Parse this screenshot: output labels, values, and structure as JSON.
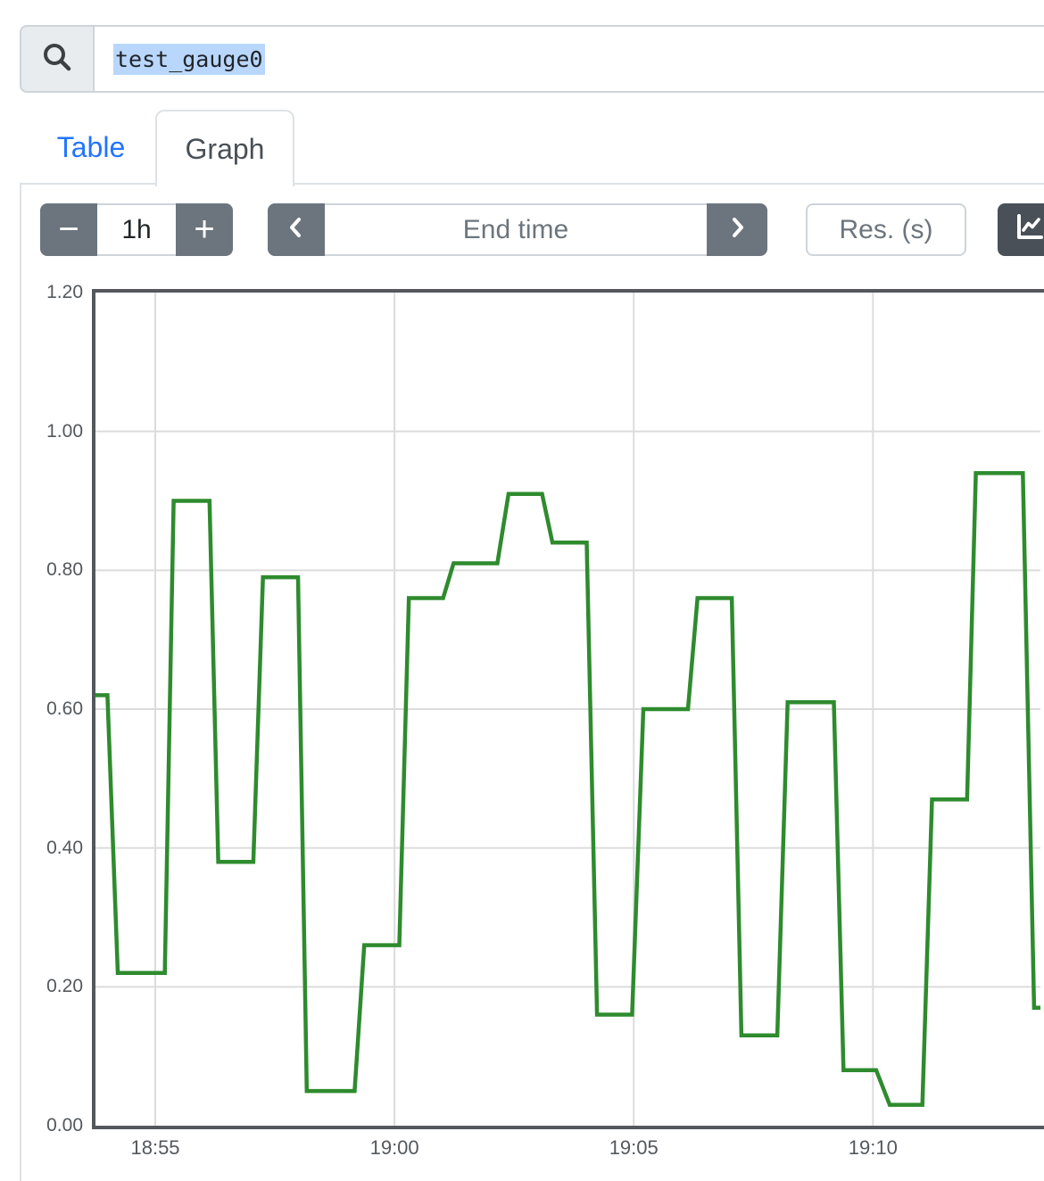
{
  "search": {
    "value": "test_gauge0"
  },
  "tabs": [
    {
      "label": "Table",
      "active": false
    },
    {
      "label": "Graph",
      "active": true
    }
  ],
  "controls": {
    "duration_decrease_label": "−",
    "duration_value": "1h",
    "duration_increase_label": "+",
    "end_time_placeholder": "End time",
    "res_placeholder": "Res. (s)"
  },
  "colors": {
    "series_green": "#2e8b2e",
    "button_gray": "#6c757d",
    "dark_button": "#495057",
    "tab_link_blue": "#2175ff",
    "grid": "#dcdcdc",
    "frame": "#54585c",
    "selection": "#b9d7fc"
  },
  "chart_data": {
    "type": "line",
    "title": "",
    "xlabel": "",
    "ylabel": "",
    "grid": true,
    "x_axis": {
      "unit": "seconds since 18:50:00",
      "domain_t": [
        225,
        1410
      ],
      "tick_t": [
        300,
        600,
        900,
        1200
      ],
      "tick_labels": [
        "18:55",
        "19:00",
        "19:05",
        "19:10"
      ]
    },
    "y_axis": {
      "ylim": [
        0,
        1.2
      ],
      "tick_values": [
        0,
        0.2,
        0.4,
        0.6,
        0.8,
        1.0,
        1.2
      ],
      "tick_labels": [
        "0.00",
        "0.20",
        "0.40",
        "0.60",
        "0.80",
        "1.00",
        "1.20"
      ]
    },
    "series": [
      {
        "name": "test_gauge0",
        "color": "#2e8b2e",
        "points": [
          [
            225,
            0.62
          ],
          [
            240,
            0.62
          ],
          [
            253,
            0.22
          ],
          [
            312,
            0.22
          ],
          [
            323,
            0.9
          ],
          [
            368,
            0.9
          ],
          [
            379,
            0.38
          ],
          [
            423,
            0.38
          ],
          [
            435,
            0.79
          ],
          [
            479,
            0.79
          ],
          [
            490,
            0.05
          ],
          [
            550,
            0.05
          ],
          [
            562,
            0.26
          ],
          [
            606,
            0.26
          ],
          [
            618,
            0.76
          ],
          [
            661,
            0.76
          ],
          [
            674,
            0.81
          ],
          [
            729,
            0.81
          ],
          [
            743,
            0.91
          ],
          [
            785,
            0.91
          ],
          [
            798,
            0.84
          ],
          [
            841,
            0.84
          ],
          [
            854,
            0.16
          ],
          [
            898,
            0.16
          ],
          [
            912,
            0.6
          ],
          [
            968,
            0.6
          ],
          [
            980,
            0.76
          ],
          [
            1023,
            0.76
          ],
          [
            1035,
            0.13
          ],
          [
            1080,
            0.13
          ],
          [
            1093,
            0.61
          ],
          [
            1151,
            0.61
          ],
          [
            1163,
            0.08
          ],
          [
            1204,
            0.08
          ],
          [
            1221,
            0.03
          ],
          [
            1262,
            0.03
          ],
          [
            1274,
            0.47
          ],
          [
            1318,
            0.47
          ],
          [
            1329,
            0.94
          ],
          [
            1388,
            0.94
          ],
          [
            1402,
            0.17
          ],
          [
            1410,
            0.17
          ]
        ]
      }
    ]
  }
}
